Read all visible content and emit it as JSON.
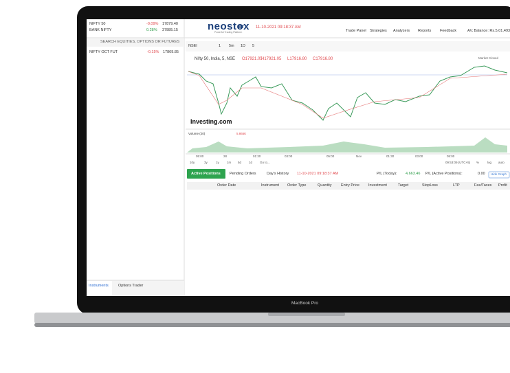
{
  "watchlist": [
    {
      "name": "NIFTY 50",
      "change": "-0.09%",
      "price": "17879.40"
    },
    {
      "name": "BANK NIFTY",
      "change": "0.28%",
      "price": "37885.15"
    }
  ],
  "search_placeholder": "SEARCH EQUITIES, OPTIONS OR FUTURES",
  "instruments": [
    {
      "name": "NIFTY OCT FUT",
      "change": "-0.15%",
      "price": "17869.85"
    }
  ],
  "left_tabs": [
    "Instruments",
    "Options Trader"
  ],
  "header": {
    "logo": "neostox",
    "badge": "BT",
    "tagline": "Powerful Trading Platform",
    "datetime": "11-10-2021 09:18:37 AM",
    "menu": [
      "Trade Panel",
      "Strategies",
      "Analyzers",
      "Reports",
      "Feedback"
    ],
    "balance": "A/c Balance: Rs.5,01,493"
  },
  "chart": {
    "symbol": "NSEI",
    "intervals": [
      "1",
      "5m",
      "1D",
      "5"
    ],
    "title": "Nifty 50, India, 5, NSE",
    "ohlc": [
      "O17921.05",
      "H17921.05",
      "L17916.80",
      "C17916.80"
    ],
    "status": "Market Closed",
    "watermark": "Investing.com",
    "volume_label": "Volume (20)",
    "volume_value": "5.865K",
    "time_labels": [
      "05:00",
      "28",
      "01:30",
      "03:00",
      "05:00",
      "Nov",
      "01:30",
      "03:00",
      "05:00"
    ],
    "ranges": [
      "10y",
      "3y",
      "1y",
      "1m",
      "5d",
      "1d",
      "Go to..."
    ],
    "clock": "09:53:09 (UTC+5)",
    "scale": [
      "%",
      "log",
      "auto"
    ]
  },
  "positions": {
    "tabs": [
      "Active Positions",
      "Pending Orders",
      "Day's History"
    ],
    "datetime": "11-10-2021 09:18:37 AM",
    "pl_today_label": "P/L (Today):",
    "pl_today": "4,663.46",
    "pl_active_label": "P/L (Active Positions):",
    "pl_active": "0.00",
    "hide_graph": "Hide Graph",
    "columns": [
      "Order Date",
      "Instrument",
      "Order Type",
      "Quantity",
      "Entry Price",
      "Investment",
      "Target",
      "StopLoss",
      "LTP",
      "Fee/Taxes",
      "Profit"
    ]
  },
  "device": "MacBook Pro"
}
